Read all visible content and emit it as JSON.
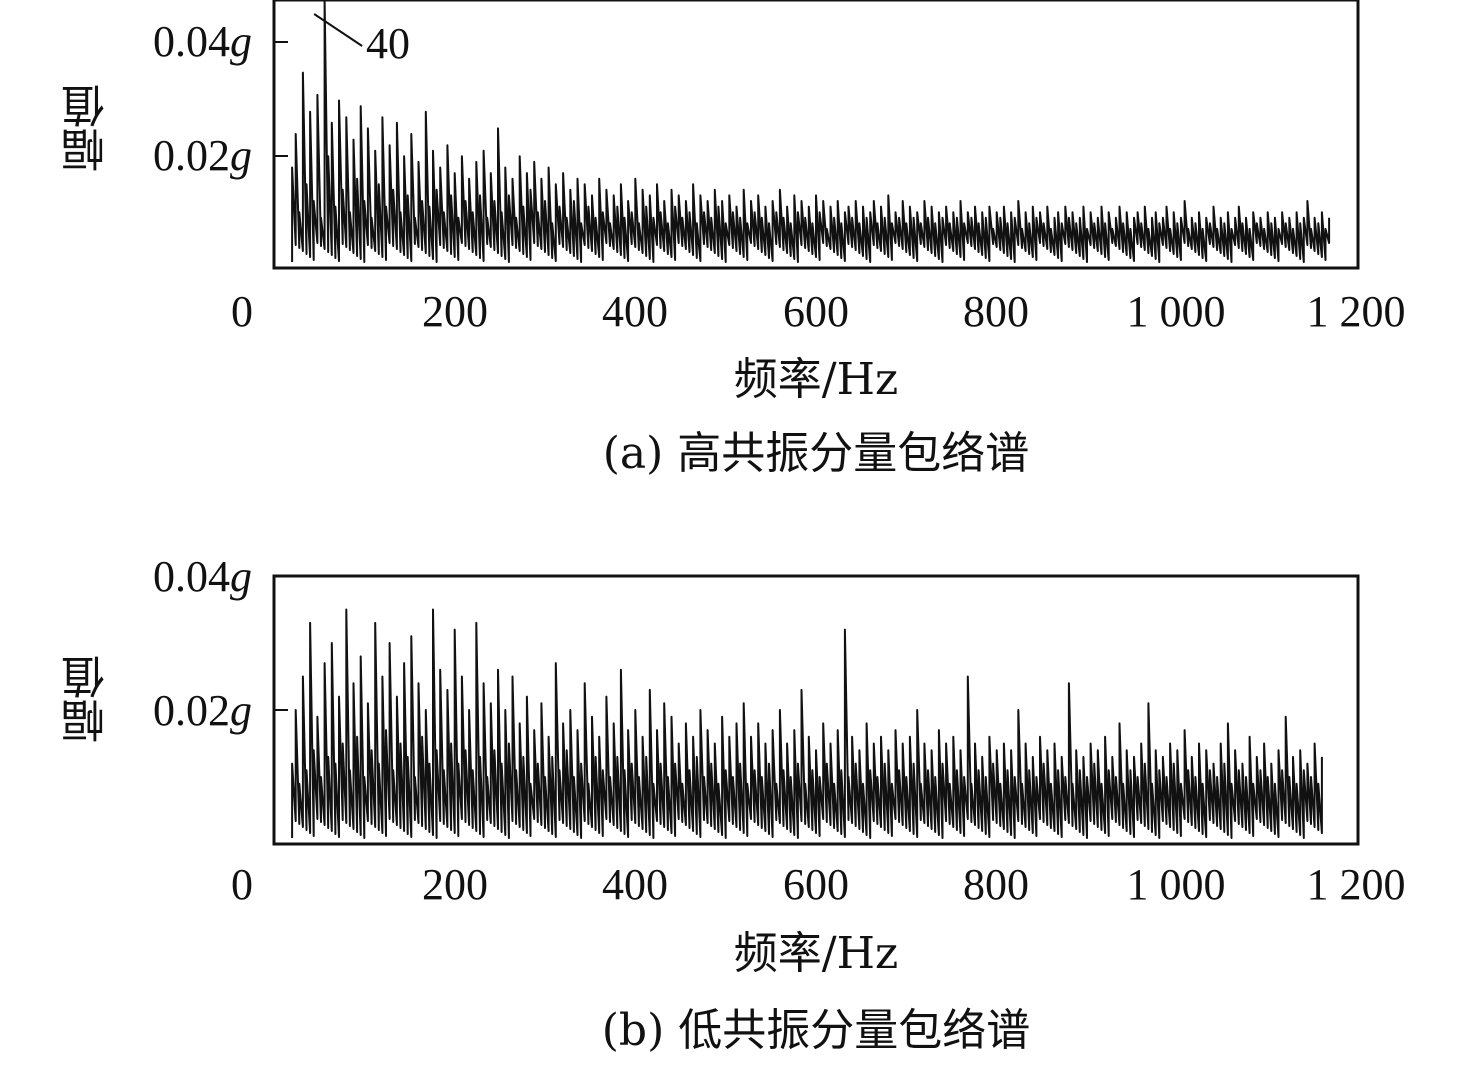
{
  "chart_data": [
    {
      "type": "line",
      "caption": "(a) 高共振分量包络谱",
      "xlabel": "频率/Hz",
      "ylabel": "幅值",
      "xlim": [
        20,
        1200
      ],
      "ylim": [
        0,
        0.048
      ],
      "xticks": [
        "0",
        "200",
        "400",
        "600",
        "800",
        "1 000",
        "1 200"
      ],
      "yticks": [
        {
          "value": 0.02,
          "num": "0.02",
          "unit": "g"
        },
        {
          "value": 0.04,
          "num": "0.04",
          "unit": "g"
        }
      ],
      "annotation": {
        "text": "40",
        "x": 40,
        "y": 0.048
      },
      "series_description": "dense noisy envelope spectrum decaying from ~0.02 to ~0.008",
      "series": {
        "x_start": 20,
        "x_step": 4,
        "values": [
          0.018,
          0.024,
          0.01,
          0.035,
          0.015,
          0.028,
          0.012,
          0.031,
          0.009,
          0.048,
          0.02,
          0.026,
          0.011,
          0.03,
          0.014,
          0.027,
          0.01,
          0.023,
          0.016,
          0.029,
          0.012,
          0.025,
          0.009,
          0.021,
          0.015,
          0.027,
          0.011,
          0.022,
          0.014,
          0.026,
          0.01,
          0.02,
          0.013,
          0.024,
          0.009,
          0.019,
          0.012,
          0.028,
          0.011,
          0.021,
          0.014,
          0.018,
          0.01,
          0.022,
          0.013,
          0.017,
          0.009,
          0.02,
          0.012,
          0.016,
          0.01,
          0.019,
          0.013,
          0.021,
          0.009,
          0.017,
          0.012,
          0.025,
          0.01,
          0.018,
          0.013,
          0.016,
          0.009,
          0.02,
          0.011,
          0.017,
          0.014,
          0.019,
          0.01,
          0.016,
          0.012,
          0.018,
          0.008,
          0.015,
          0.011,
          0.017,
          0.009,
          0.014,
          0.012,
          0.016,
          0.008,
          0.015,
          0.011,
          0.013,
          0.009,
          0.016,
          0.01,
          0.014,
          0.008,
          0.013,
          0.011,
          0.015,
          0.009,
          0.012,
          0.01,
          0.016,
          0.008,
          0.014,
          0.011,
          0.013,
          0.009,
          0.015,
          0.01,
          0.012,
          0.008,
          0.014,
          0.011,
          0.013,
          0.009,
          0.012,
          0.01,
          0.015,
          0.008,
          0.013,
          0.01,
          0.012,
          0.009,
          0.014,
          0.011,
          0.012,
          0.008,
          0.013,
          0.01,
          0.011,
          0.009,
          0.014,
          0.008,
          0.012,
          0.01,
          0.013,
          0.009,
          0.011,
          0.008,
          0.012,
          0.01,
          0.014,
          0.009,
          0.011,
          0.008,
          0.013,
          0.01,
          0.012,
          0.009,
          0.011,
          0.008,
          0.013,
          0.01,
          0.012,
          0.007,
          0.011,
          0.009,
          0.012,
          0.008,
          0.01,
          0.011,
          0.009,
          0.012,
          0.008,
          0.011,
          0.009,
          0.01,
          0.012,
          0.008,
          0.011,
          0.009,
          0.013,
          0.008,
          0.01,
          0.009,
          0.012,
          0.008,
          0.011,
          0.009,
          0.01,
          0.008,
          0.012,
          0.009,
          0.011,
          0.008,
          0.01,
          0.009,
          0.011,
          0.008,
          0.01,
          0.009,
          0.012,
          0.008,
          0.01,
          0.009,
          0.011,
          0.008,
          0.01,
          0.009,
          0.011,
          0.007,
          0.01,
          0.009,
          0.011,
          0.008,
          0.01,
          0.009,
          0.012,
          0.007,
          0.01,
          0.008,
          0.011,
          0.009,
          0.01,
          0.008,
          0.011,
          0.007,
          0.009,
          0.01,
          0.008,
          0.011,
          0.009,
          0.01,
          0.008,
          0.009,
          0.011,
          0.007,
          0.01,
          0.008,
          0.009,
          0.011,
          0.008,
          0.01,
          0.007,
          0.009,
          0.011,
          0.008,
          0.01,
          0.007,
          0.009,
          0.01,
          0.008,
          0.011,
          0.007,
          0.009,
          0.01,
          0.008,
          0.009,
          0.011,
          0.007,
          0.01,
          0.008,
          0.009,
          0.012,
          0.007,
          0.009,
          0.008,
          0.01,
          0.007,
          0.009,
          0.008,
          0.011,
          0.007,
          0.009,
          0.008,
          0.01,
          0.007,
          0.009,
          0.011,
          0.008,
          0.009,
          0.007,
          0.01,
          0.008,
          0.009,
          0.007,
          0.01,
          0.008,
          0.009,
          0.007,
          0.01,
          0.008,
          0.009,
          0.007,
          0.01,
          0.008,
          0.009,
          0.012,
          0.007,
          0.009,
          0.008,
          0.01,
          0.007,
          0.009
        ]
      }
    },
    {
      "type": "line",
      "caption": "(b) 低共振分量包络谱",
      "xlabel": "频率/Hz",
      "ylabel": "幅值",
      "xlim": [
        20,
        1200
      ],
      "ylim": [
        0,
        0.04
      ],
      "xticks": [
        "0",
        "200",
        "400",
        "600",
        "800",
        "1 000",
        "1 200"
      ],
      "yticks": [
        {
          "value": 0.02,
          "num": "0.02",
          "unit": "g"
        },
        {
          "value": 0.04,
          "num": "0.04",
          "unit": "g"
        }
      ],
      "series_description": "dense noisy envelope spectrum decaying from ~0.015 to ~0.009",
      "series": {
        "x_start": 20,
        "x_step": 4,
        "values": [
          0.012,
          0.02,
          0.009,
          0.025,
          0.011,
          0.033,
          0.014,
          0.019,
          0.01,
          0.027,
          0.013,
          0.03,
          0.012,
          0.022,
          0.015,
          0.035,
          0.011,
          0.024,
          0.016,
          0.028,
          0.01,
          0.021,
          0.014,
          0.033,
          0.012,
          0.025,
          0.017,
          0.03,
          0.011,
          0.022,
          0.015,
          0.027,
          0.013,
          0.031,
          0.01,
          0.024,
          0.016,
          0.02,
          0.012,
          0.035,
          0.014,
          0.026,
          0.011,
          0.023,
          0.015,
          0.032,
          0.012,
          0.025,
          0.014,
          0.02,
          0.011,
          0.033,
          0.013,
          0.024,
          0.01,
          0.021,
          0.014,
          0.026,
          0.012,
          0.02,
          0.015,
          0.025,
          0.011,
          0.018,
          0.013,
          0.022,
          0.009,
          0.017,
          0.012,
          0.021,
          0.01,
          0.016,
          0.013,
          0.027,
          0.011,
          0.018,
          0.014,
          0.02,
          0.01,
          0.017,
          0.012,
          0.024,
          0.009,
          0.019,
          0.013,
          0.016,
          0.011,
          0.022,
          0.01,
          0.018,
          0.013,
          0.026,
          0.011,
          0.017,
          0.012,
          0.02,
          0.01,
          0.016,
          0.013,
          0.023,
          0.009,
          0.017,
          0.012,
          0.021,
          0.01,
          0.019,
          0.012,
          0.015,
          0.009,
          0.018,
          0.011,
          0.016,
          0.013,
          0.02,
          0.01,
          0.017,
          0.012,
          0.015,
          0.009,
          0.019,
          0.011,
          0.016,
          0.01,
          0.018,
          0.012,
          0.021,
          0.009,
          0.016,
          0.011,
          0.018,
          0.01,
          0.015,
          0.012,
          0.017,
          0.009,
          0.02,
          0.011,
          0.015,
          0.01,
          0.017,
          0.012,
          0.023,
          0.009,
          0.016,
          0.011,
          0.014,
          0.01,
          0.018,
          0.012,
          0.015,
          0.009,
          0.017,
          0.011,
          0.032,
          0.01,
          0.016,
          0.012,
          0.014,
          0.009,
          0.018,
          0.011,
          0.015,
          0.01,
          0.016,
          0.012,
          0.014,
          0.009,
          0.017,
          0.011,
          0.015,
          0.01,
          0.016,
          0.012,
          0.02,
          0.009,
          0.015,
          0.011,
          0.014,
          0.01,
          0.017,
          0.012,
          0.015,
          0.009,
          0.016,
          0.011,
          0.014,
          0.01,
          0.025,
          0.009,
          0.015,
          0.011,
          0.013,
          0.01,
          0.016,
          0.012,
          0.014,
          0.009,
          0.015,
          0.011,
          0.014,
          0.01,
          0.02,
          0.009,
          0.015,
          0.011,
          0.013,
          0.01,
          0.016,
          0.012,
          0.014,
          0.009,
          0.015,
          0.011,
          0.013,
          0.01,
          0.024,
          0.009,
          0.014,
          0.011,
          0.013,
          0.01,
          0.015,
          0.012,
          0.014,
          0.009,
          0.016,
          0.011,
          0.013,
          0.01,
          0.018,
          0.009,
          0.014,
          0.011,
          0.013,
          0.01,
          0.015,
          0.012,
          0.021,
          0.009,
          0.014,
          0.011,
          0.013,
          0.01,
          0.015,
          0.012,
          0.014,
          0.009,
          0.017,
          0.011,
          0.013,
          0.01,
          0.015,
          0.009,
          0.014,
          0.011,
          0.012,
          0.01,
          0.015,
          0.012,
          0.018,
          0.009,
          0.014,
          0.011,
          0.012,
          0.01,
          0.016,
          0.009,
          0.013,
          0.011,
          0.015,
          0.01,
          0.012,
          0.009,
          0.014,
          0.011,
          0.019,
          0.01,
          0.013,
          0.009,
          0.014,
          0.011,
          0.012,
          0.01,
          0.015,
          0.009,
          0.013
        ]
      }
    }
  ]
}
